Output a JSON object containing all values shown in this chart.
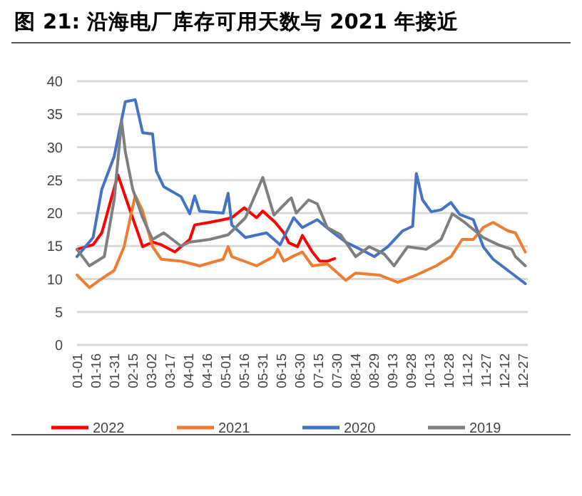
{
  "chart_data": {
    "type": "line",
    "title": "图 21: 沿海电厂库存可用天数与 2021 年接近",
    "xlim": [
      "--01-01",
      "--12-31"
    ],
    "xticks": [
      {
        "value": "--01-01",
        "label": "01-01"
      },
      {
        "value": "--01-16",
        "label": "01-16"
      },
      {
        "value": "--01-31",
        "label": "01-31"
      },
      {
        "value": "--02-15",
        "label": "02-15"
      },
      {
        "value": "--03-02",
        "label": "03-02"
      },
      {
        "value": "--03-17",
        "label": "03-17"
      },
      {
        "value": "--04-01",
        "label": "04-01"
      },
      {
        "value": "--04-16",
        "label": "04-16"
      },
      {
        "value": "--05-01",
        "label": "05-01"
      },
      {
        "value": "--05-16",
        "label": "05-16"
      },
      {
        "value": "--05-31",
        "label": "05-31"
      },
      {
        "value": "--06-15",
        "label": "06-15"
      },
      {
        "value": "--06-30",
        "label": "06-30"
      },
      {
        "value": "--07-15",
        "label": "07-15"
      },
      {
        "value": "--07-30",
        "label": "07-30"
      },
      {
        "value": "--08-14",
        "label": "08-14"
      },
      {
        "value": "--08-29",
        "label": "08-29"
      },
      {
        "value": "--09-13",
        "label": "09-13"
      },
      {
        "value": "--09-28",
        "label": "09-28"
      },
      {
        "value": "--10-13",
        "label": "10-13"
      },
      {
        "value": "--10-28",
        "label": "10-28"
      },
      {
        "value": "--11-12",
        "label": "11-12"
      },
      {
        "value": "--11-27",
        "label": "11-27"
      },
      {
        "value": "--12-12",
        "label": "12-12"
      },
      {
        "value": "--12-27",
        "label": "12-27"
      }
    ],
    "ylim": [
      0,
      40
    ],
    "yticks": [
      0,
      5,
      10,
      15,
      20,
      25,
      30,
      35,
      40
    ],
    "grid": "y",
    "legend": "bottom",
    "marker": "none",
    "line_style": "solid",
    "series": [
      {
        "name": "2022",
        "color": "#ff0000",
        "x": [
          "--01-01",
          "--01-14",
          "--01-21",
          "--02-03",
          "--02-11",
          "--02-19",
          "--02-23",
          "--03-03",
          "--03-10",
          "--03-21",
          "--04-02",
          "--04-06",
          "--04-18",
          "--04-29",
          "--05-06",
          "--05-16",
          "--05-26",
          "--05-31",
          "--06-10",
          "--06-17",
          "--06-21",
          "--06-28",
          "--07-02",
          "--07-10",
          "--07-16",
          "--07-22",
          "--07-28"
        ],
        "values": [
          14.5,
          15.2,
          17,
          25.8,
          21.4,
          17.1,
          14.9,
          15.6,
          15.2,
          14.1,
          16,
          18.2,
          18.6,
          19,
          19.3,
          20.8,
          19.3,
          20.3,
          18.6,
          17,
          15.5,
          14.9,
          16.6,
          14.1,
          12.7,
          12.7,
          13.1
        ]
      },
      {
        "name": "2021",
        "color": "#ed7d31",
        "x": [
          "--01-01",
          "--01-11",
          "--01-19",
          "--01-31",
          "--02-08",
          "--02-17",
          "--02-23",
          "--03-03",
          "--03-10",
          "--03-26",
          "--04-10",
          "--04-29",
          "--05-03",
          "--05-06",
          "--05-26",
          "--06-09",
          "--06-12",
          "--06-17",
          "--06-25",
          "--07-02",
          "--07-10",
          "--07-22",
          "--08-06",
          "--08-14",
          "--09-02",
          "--09-17",
          "--10-02",
          "--10-18",
          "--10-30",
          "--11-08",
          "--11-17",
          "--11-25",
          "--12-03",
          "--12-15",
          "--12-21",
          "--12-29"
        ],
        "values": [
          10.6,
          8.7,
          9.8,
          11.3,
          14.9,
          22.7,
          20.3,
          14.9,
          13,
          12.7,
          12,
          13,
          14.9,
          13.4,
          12,
          13.4,
          14.5,
          12.7,
          13.5,
          14.1,
          12,
          12.3,
          9.8,
          10.9,
          10.6,
          9.5,
          10.6,
          12,
          13.4,
          16,
          16,
          17.8,
          18.6,
          17.3,
          17,
          14.1
        ]
      },
      {
        "name": "2020",
        "color": "#4472c4",
        "x": [
          "--01-01",
          "--01-14",
          "--01-21",
          "--01-31",
          "--02-09",
          "--02-17",
          "--02-23",
          "--03-03",
          "--03-06",
          "--03-12",
          "--03-26",
          "--04-02",
          "--04-06",
          "--04-10",
          "--04-29",
          "--05-03",
          "--05-06",
          "--05-17",
          "--06-03",
          "--06-14",
          "--06-25",
          "--07-02",
          "--07-14",
          "--07-25",
          "--08-06",
          "--08-22",
          "--08-29",
          "--09-09",
          "--09-21",
          "--09-29",
          "--10-02",
          "--10-07",
          "--10-14",
          "--10-22",
          "--10-30",
          "--11-06",
          "--11-17",
          "--11-25",
          "--12-03",
          "--12-15",
          "--12-29"
        ],
        "values": [
          13.4,
          16.3,
          23.6,
          28.6,
          36.9,
          37.2,
          32.2,
          32,
          26.4,
          24,
          22.5,
          19.9,
          22.6,
          20.3,
          20,
          23,
          18.2,
          16.3,
          17,
          15.2,
          19.3,
          17.8,
          19,
          17.3,
          15.6,
          14.1,
          13.4,
          14.9,
          17.3,
          18,
          26,
          22,
          20.2,
          20.5,
          21.6,
          19.8,
          19,
          14.9,
          13,
          11.3,
          9.3
        ]
      },
      {
        "name": "2019",
        "color": "#7f7f7f",
        "x": [
          "--01-01",
          "--01-11",
          "--01-23",
          "--01-31",
          "--02-06",
          "--02-09",
          "--02-15",
          "--02-23",
          "--03-03",
          "--03-12",
          "--03-26",
          "--04-02",
          "--04-18",
          "--05-03",
          "--05-17",
          "--05-31",
          "--06-09",
          "--06-21",
          "--06-23",
          "--06-27",
          "--07-07",
          "--07-14",
          "--07-22",
          "--08-02",
          "--08-14",
          "--08-25",
          "--09-06",
          "--09-14",
          "--09-25",
          "--10-10",
          "--10-22",
          "--10-31",
          "--11-10",
          "--11-25",
          "--12-07",
          "--12-18",
          "--12-21",
          "--12-29"
        ],
        "values": [
          14.5,
          12,
          13.4,
          22,
          34,
          29.3,
          23.6,
          19.3,
          16,
          17,
          15,
          15.6,
          16,
          16.7,
          19.3,
          25.4,
          19.7,
          22,
          22.3,
          20,
          22,
          21.4,
          17.8,
          16.7,
          13.4,
          14.9,
          13.8,
          12,
          14.9,
          14.5,
          16,
          19.9,
          18.6,
          16.3,
          15.2,
          14.5,
          13.4,
          12
        ]
      }
    ]
  }
}
